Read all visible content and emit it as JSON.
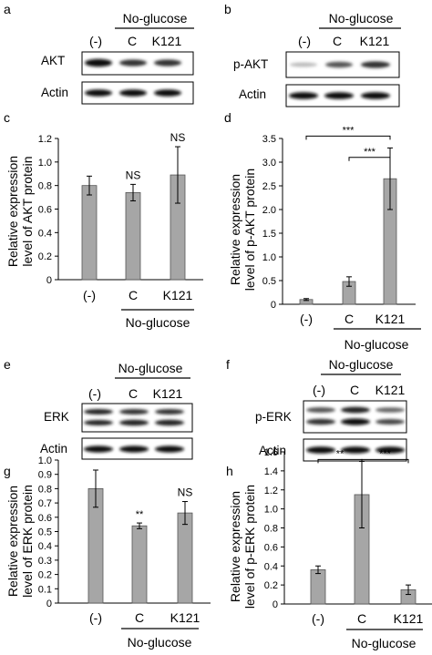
{
  "figure": {
    "group_label": "No-glucose",
    "lanes": [
      "(-)",
      "C",
      "K121"
    ]
  },
  "panels": [
    {
      "id": "a",
      "blot_top": "AKT",
      "blot_bottom": "Actin"
    },
    {
      "id": "b",
      "blot_top": "p-AKT",
      "blot_bottom": "Actin"
    },
    {
      "id": "e",
      "blot_top": "ERK",
      "blot_bottom": "Actin"
    },
    {
      "id": "f",
      "blot_top": "p-ERK",
      "blot_bottom": "Actin"
    }
  ],
  "chart_data": [
    {
      "panel": "c",
      "type": "bar",
      "ylabel": [
        "Relative expression",
        "level of AKT  protein"
      ],
      "categories": [
        "(-)",
        "C",
        "K121"
      ],
      "group_label": "No-glucose",
      "values": [
        0.8,
        0.74,
        0.89
      ],
      "errors": [
        0.08,
        0.07,
        0.24
      ],
      "ylim": [
        0,
        1.2
      ],
      "yticks": [
        "0",
        "0.2",
        "0.4",
        "0.6",
        "0.8",
        "1.0",
        "1.2"
      ],
      "bar_labels": [
        "",
        "NS",
        "NS"
      ],
      "brackets": []
    },
    {
      "panel": "d",
      "type": "bar",
      "ylabel": [
        "Relative expression",
        "level of p-AKT protein"
      ],
      "categories": [
        "(-)",
        "C",
        "K121"
      ],
      "group_label": "No-glucose",
      "values": [
        0.1,
        0.48,
        2.65
      ],
      "errors": [
        0.02,
        0.1,
        0.65
      ],
      "ylim": [
        0,
        3.5
      ],
      "yticks": [
        "0",
        "0.5",
        "1.0",
        "1.5",
        "2.0",
        "2.5",
        "3.0",
        "3.5"
      ],
      "bar_labels": [
        "",
        "",
        ""
      ],
      "brackets": [
        {
          "from": 0,
          "to": 2,
          "label": "***",
          "y": 3.55
        },
        {
          "from": 1,
          "to": 2,
          "label": "***",
          "y": 3.1
        }
      ]
    },
    {
      "panel": "g",
      "type": "bar",
      "ylabel": [
        "Relative expression",
        "level of ERK  protein"
      ],
      "categories": [
        "(-)",
        "C",
        "K121"
      ],
      "group_label": "No-glucose",
      "values": [
        0.8,
        0.54,
        0.63
      ],
      "errors": [
        0.13,
        0.02,
        0.08
      ],
      "ylim": [
        0,
        1.0
      ],
      "yticks": [
        "0",
        "0.1",
        "0.2",
        "0.3",
        "0.4",
        "0.5",
        "0.6",
        "0.7",
        "0.8",
        "0.9",
        "1.0"
      ],
      "bar_labels": [
        "",
        "**",
        "NS"
      ],
      "brackets": []
    },
    {
      "panel": "h",
      "type": "bar",
      "ylabel": [
        "Relative expression",
        "level of p-ERK  protein"
      ],
      "categories": [
        "(-)",
        "C",
        "K121"
      ],
      "group_label": "No-glucose",
      "values": [
        0.36,
        1.15,
        0.15
      ],
      "errors": [
        0.04,
        0.35,
        0.05
      ],
      "ylim": [
        0,
        1.6
      ],
      "yticks": [
        "0",
        "0.2",
        "0.4",
        "0.6",
        "0.8",
        "1.0",
        "1.2",
        "1.4",
        "1.6"
      ],
      "bar_labels": [
        "",
        "",
        ""
      ],
      "brackets": [
        {
          "from": 0,
          "to": 1,
          "label": "**",
          "y": 1.52
        },
        {
          "from": 1,
          "to": 2,
          "label": "***",
          "y": 1.52
        }
      ]
    }
  ]
}
